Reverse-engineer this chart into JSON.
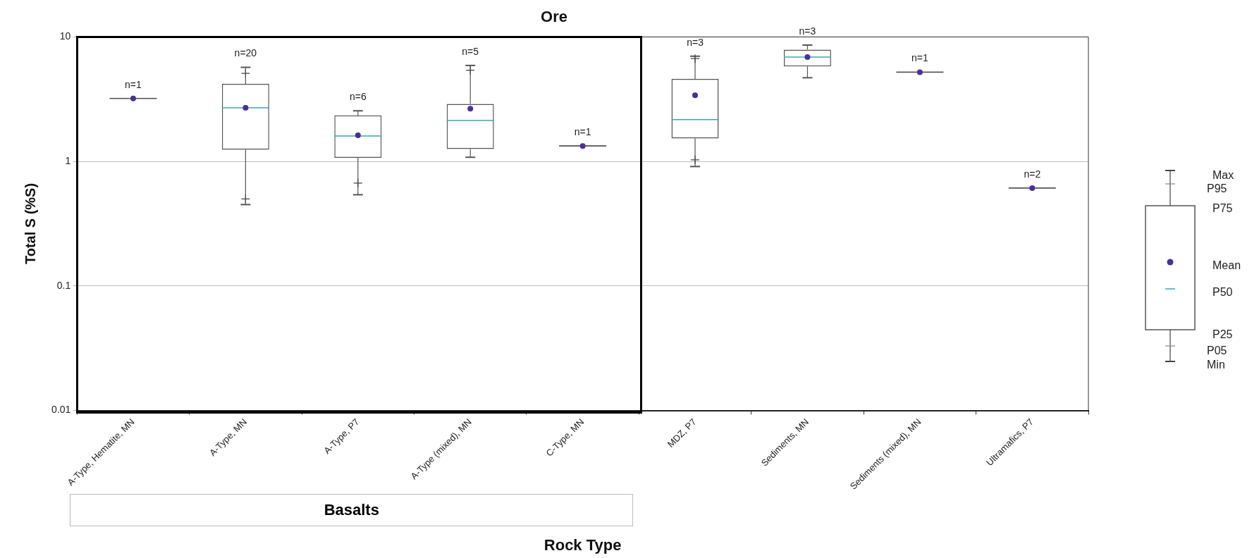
{
  "chart_data": {
    "type": "box",
    "title": "Ore",
    "xlabel": "Rock Type",
    "ylabel": "Total S (%S)",
    "categories": [
      "A-Type, Hematite, MN",
      "A-Type, MN",
      "A-Type, P7",
      "A-Type (mixed), MN",
      "C-Type, MN",
      "MDZ, P7",
      "Sediments, MN",
      "Sediments (mixed), MN",
      "Ultramafics, P7"
    ],
    "series": [
      {
        "color": "#555555",
        "boxes": [
          {
            "low": 3.2,
            "q1": 3.2,
            "median": 3.2,
            "q3": 3.2,
            "high": 3.2,
            "mean": 3.2
          },
          {
            "low": 0.45,
            "q1": 1.24,
            "median": 2.7,
            "q3": 4.2,
            "high": 5.7,
            "mean": 2.7
          },
          {
            "low": 0.54,
            "q1": 1.07,
            "median": 1.6,
            "q3": 2.34,
            "high": 2.55,
            "mean": 1.62
          },
          {
            "low": 1.08,
            "q1": 1.26,
            "median": 2.13,
            "q3": 2.9,
            "high": 5.9,
            "mean": 2.65
          },
          {
            "low": 1.33,
            "q1": 1.33,
            "median": 1.33,
            "q3": 1.33,
            "high": 1.33,
            "mean": 1.33
          },
          {
            "low": 0.91,
            "q1": 1.53,
            "median": 2.17,
            "q3": 4.6,
            "high": 7.0,
            "mean": 3.4
          },
          {
            "low": 4.7,
            "q1": 5.8,
            "median": 6.9,
            "q3": 7.9,
            "high": 8.6,
            "mean": 6.9
          },
          {
            "low": 5.2,
            "q1": 5.2,
            "median": 5.2,
            "q3": 5.2,
            "high": 5.2,
            "mean": 5.2
          },
          {
            "low": 0.61,
            "q1": 0.61,
            "median": 0.61,
            "q3": 0.61,
            "high": 0.61,
            "mean": 0.61
          }
        ],
        "value_labels": [
          "n=1",
          "n=20",
          "n=6",
          "n=5",
          "n=1",
          "n=3",
          "n=3",
          "n=1",
          "n=2"
        ]
      },
      {
        "type": "scatter",
        "color": "#444444",
        "marker": "cross",
        "x": [
          "A-Type, Hematite, MN",
          "A-Type, MN",
          "A-Type, P7",
          "A-Type (mixed), MN",
          "C-Type, MN",
          "MDZ, P7",
          "Sediments, MN",
          "Sediments (mixed), MN",
          "Ultramafics, P7"
        ],
        "values": [
          null,
          5.1,
          null,
          5.4,
          null,
          6.7,
          null,
          null,
          null
        ]
      },
      {
        "type": "scatter",
        "color": "#444444",
        "marker": "cross",
        "x": [
          "A-Type, Hematite, MN",
          "A-Type, MN",
          "A-Type, P7",
          "A-Type (mixed), MN",
          "C-Type, MN",
          "MDZ, P7",
          "Sediments, MN",
          "Sediments (mixed), MN",
          "Ultramafics, P7"
        ],
        "values": [
          null,
          0.5,
          0.67,
          null,
          null,
          1.03,
          null,
          null,
          null
        ]
      }
    ],
    "ylim": [
      0.01,
      10
    ],
    "yticks": [
      0.01,
      0.1,
      1,
      10
    ],
    "log": true,
    "grid": "y",
    "annotations": [
      "Basalts",
      "Max",
      "P95",
      "P75",
      "Mean",
      "P50",
      "P25",
      "P05",
      "Min"
    ]
  }
}
